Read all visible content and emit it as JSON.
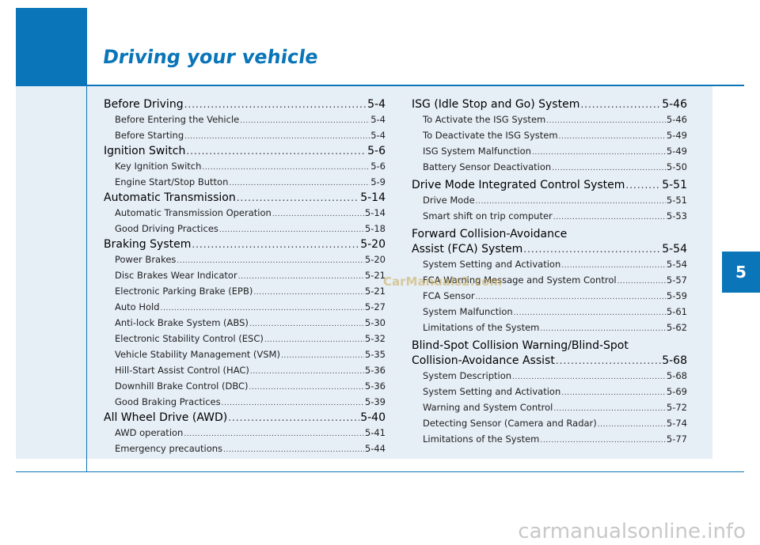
{
  "page": {
    "title": "Driving your vehicle",
    "chapter_number": "5",
    "watermark": "CarManuals2.com",
    "footer_site": "carmanualsonline.info"
  },
  "toc_left": [
    {
      "title": "Before Driving",
      "page": "5-4",
      "items": [
        {
          "title": "Before Entering the Vehicle",
          "page": "5-4"
        },
        {
          "title": "Before Starting",
          "page": "5-4"
        }
      ]
    },
    {
      "title": "Ignition Switch",
      "page": "5-6",
      "items": [
        {
          "title": "Key Ignition Switch",
          "page": "5-6"
        },
        {
          "title": "Engine Start/Stop Button",
          "page": "5-9"
        }
      ]
    },
    {
      "title": "Automatic Transmission",
      "page": "5-14",
      "items": [
        {
          "title": "Automatic Transmission Operation",
          "page": "5-14"
        },
        {
          "title": "Good Driving Practices",
          "page": "5-18"
        }
      ]
    },
    {
      "title": "Braking System",
      "page": "5-20",
      "items": [
        {
          "title": "Power Brakes",
          "page": "5-20"
        },
        {
          "title": "Disc Brakes Wear Indicator",
          "page": "5-21"
        },
        {
          "title": "Electronic Parking Brake (EPB)",
          "page": "5-21"
        },
        {
          "title": "Auto Hold",
          "page": "5-27"
        },
        {
          "title": "Anti-lock Brake System (ABS)",
          "page": "5-30"
        },
        {
          "title": "Electronic Stability Control (ESC)",
          "page": "5-32"
        },
        {
          "title": "Vehicle Stability Management (VSM)",
          "page": "5-35"
        },
        {
          "title": "Hill-Start Assist Control (HAC)",
          "page": "5-36"
        },
        {
          "title": "Downhill Brake Control (DBC)",
          "page": "5-36"
        },
        {
          "title": "Good Braking Practices",
          "page": "5-39"
        }
      ]
    },
    {
      "title": "All Wheel Drive (AWD)",
      "page": "5-40",
      "items": [
        {
          "title": "AWD operation",
          "page": "5-41"
        },
        {
          "title": "Emergency precautions",
          "page": "5-44"
        }
      ]
    }
  ],
  "toc_right": [
    {
      "title": "ISG (Idle Stop and Go) System",
      "page": "5-46",
      "items": [
        {
          "title": "To Activate the ISG System",
          "page": "5-46"
        },
        {
          "title": "To Deactivate the ISG System",
          "page": "5-49"
        },
        {
          "title": "ISG System Malfunction",
          "page": "5-49"
        },
        {
          "title": "Battery Sensor Deactivation",
          "page": "5-50"
        }
      ]
    },
    {
      "title": "Drive Mode Integrated Control System",
      "page": "5-51",
      "items": [
        {
          "title": "Drive Mode",
          "page": "5-51"
        },
        {
          "title": "Smart shift on trip computer",
          "page": "5-53"
        }
      ]
    },
    {
      "title_line1": "Forward Collision-Avoidance",
      "title": "Assist (FCA) System",
      "page": "5-54",
      "items": [
        {
          "title": "System Setting and Activation",
          "page": "5-54"
        },
        {
          "title": "FCA Warning Message and System Control",
          "page": "5-57"
        },
        {
          "title": "FCA Sensor",
          "page": "5-59"
        },
        {
          "title": "System Malfunction",
          "page": "5-61"
        },
        {
          "title": "Limitations of the System",
          "page": "5-62"
        }
      ]
    },
    {
      "title_line1": "Blind-Spot Collision Warning/Blind-Spot",
      "title": "Collision-Avoidance Assist",
      "page": "5-68",
      "items": [
        {
          "title": "System Description",
          "page": "5-68"
        },
        {
          "title": "System Setting and Activation",
          "page": "5-69"
        },
        {
          "title": "Warning and System Control",
          "page": "5-72"
        },
        {
          "title": "Detecting Sensor (Camera and Radar)",
          "page": "5-74"
        },
        {
          "title": "Limitations of the System",
          "page": "5-77"
        }
      ]
    }
  ]
}
